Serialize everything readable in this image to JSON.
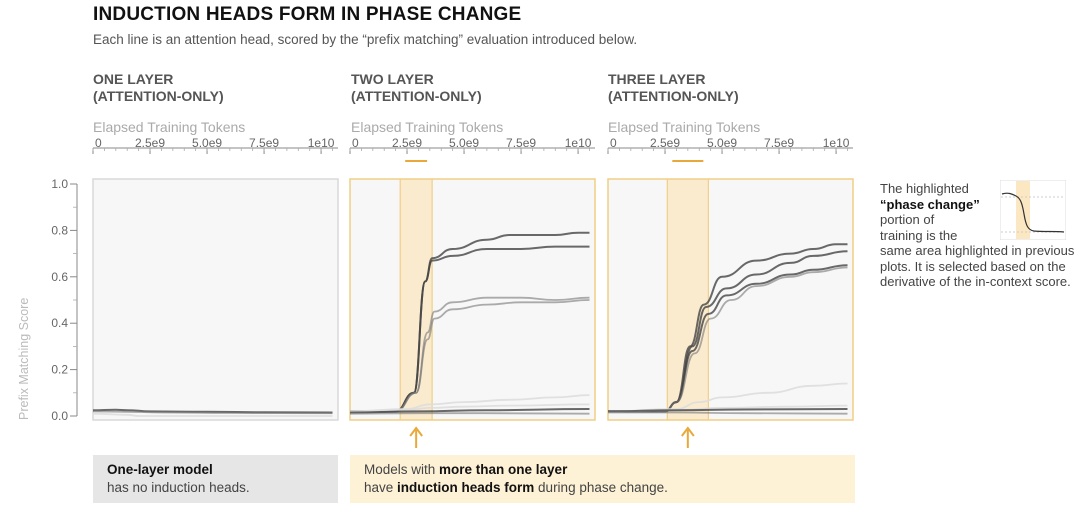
{
  "title": "INDUCTION HEADS FORM IN PHASE CHANGE",
  "subtitle": "Each line is an attention head, scored by the “prefix matching” evaluation introduced below.",
  "colors": {
    "highlight_fill": "#fbe7c1",
    "highlight_border": "#f0cf86",
    "arrow": "#e8a93a",
    "line_dark": "#444444",
    "line_faint": "#dddddd",
    "plot_bg": "#f7f7f7"
  },
  "chart_data": [
    {
      "type": "line",
      "panel_title": "ONE LAYER\n(ATTENTION-ONLY)",
      "xlabel": "Elapsed Training Tokens",
      "ylabel": "Prefix Matching Score",
      "xlim": [
        0,
        10000000000
      ],
      "ylim": [
        0,
        1.0
      ],
      "x_ticks": [
        "0",
        "2.5e9",
        "5.0e9",
        "7.5e9",
        "1e10"
      ],
      "y_ticks": [
        "0.0",
        "0.2",
        "0.4",
        "0.6",
        "0.8",
        "1.0"
      ],
      "phase_change": null,
      "series": [
        {
          "x": [
            0,
            1000000000.0,
            1500000000.0,
            2500000000.0,
            5000000000.0,
            7500000000.0,
            10500000000.0
          ],
          "values": [
            0.025,
            0.027,
            0.025,
            0.02,
            0.018,
            0.016,
            0.015
          ],
          "weight": "dark"
        },
        {
          "x": [
            0,
            1500000000.0,
            3000000000.0,
            6000000000.0,
            10500000000.0
          ],
          "values": [
            0.02,
            0.018,
            0.015,
            0.013,
            0.012
          ],
          "weight": "mid"
        },
        {
          "x": [
            0,
            1500000000.0,
            2000000000.0,
            5000000000.0,
            10500000000.0
          ],
          "values": [
            0.01,
            0.005,
            0.0,
            0.0,
            0.0
          ],
          "weight": "faint"
        }
      ]
    },
    {
      "type": "line",
      "panel_title": "TWO LAYER\n(ATTENTION-ONLY)",
      "xlabel": "Elapsed Training Tokens",
      "xlim": [
        0,
        10000000000
      ],
      "ylim": [
        0,
        1.0
      ],
      "x_ticks": [
        "0",
        "2.5e9",
        "5.0e9",
        "7.5e9",
        "1e10"
      ],
      "phase_change": [
        2200000000.0,
        3600000000.0
      ],
      "series": [
        {
          "x": [
            0,
            2000000000.0,
            2800000000.0,
            3300000000.0,
            3600000000.0,
            4500000000.0,
            6000000000.0,
            7000000000.0,
            9000000000.0,
            10000000000.0,
            10500000000.0
          ],
          "values": [
            0.02,
            0.02,
            0.1,
            0.58,
            0.68,
            0.72,
            0.76,
            0.78,
            0.78,
            0.79,
            0.79
          ],
          "weight": "dark"
        },
        {
          "x": [
            0,
            2000000000.0,
            2800000000.0,
            3300000000.0,
            3600000000.0,
            4500000000.0,
            6000000000.0,
            7500000000.0,
            9000000000.0,
            10500000000.0
          ],
          "values": [
            0.02,
            0.02,
            0.1,
            0.58,
            0.67,
            0.69,
            0.72,
            0.72,
            0.73,
            0.73
          ],
          "weight": "dark"
        },
        {
          "x": [
            0,
            2000000000.0,
            2900000000.0,
            3400000000.0,
            3700000000.0,
            4500000000.0,
            6000000000.0,
            7500000000.0,
            9000000000.0,
            10500000000.0
          ],
          "values": [
            0.02,
            0.02,
            0.1,
            0.36,
            0.45,
            0.49,
            0.51,
            0.51,
            0.5,
            0.51
          ],
          "weight": "mid"
        },
        {
          "x": [
            0,
            2000000000.0,
            2900000000.0,
            3400000000.0,
            3700000000.0,
            4500000000.0,
            6000000000.0,
            7500000000.0,
            9000000000.0,
            10500000000.0
          ],
          "values": [
            0.02,
            0.02,
            0.1,
            0.33,
            0.42,
            0.46,
            0.48,
            0.49,
            0.49,
            0.5
          ],
          "weight": "mid"
        },
        {
          "x": [
            0,
            2500000000.0,
            3500000000.0,
            5000000000.0,
            7000000000.0,
            9000000000.0,
            10500000000.0
          ],
          "values": [
            0.02,
            0.03,
            0.05,
            0.06,
            0.07,
            0.08,
            0.09
          ],
          "weight": "faint"
        },
        {
          "x": [
            0,
            2500000000.0,
            3500000000.0,
            5000000000.0,
            7000000000.0,
            10500000000.0
          ],
          "values": [
            0.02,
            0.025,
            0.035,
            0.04,
            0.045,
            0.05
          ],
          "weight": "faint"
        },
        {
          "x": [
            0,
            3000000000.0,
            6000000000.0,
            10500000000.0
          ],
          "values": [
            0.015,
            0.02,
            0.025,
            0.03
          ],
          "weight": "dark"
        },
        {
          "x": [
            0,
            3000000000.0,
            6000000000.0,
            10500000000.0
          ],
          "values": [
            0.01,
            0.012,
            0.012,
            0.01
          ],
          "weight": "mid"
        }
      ]
    },
    {
      "type": "line",
      "panel_title": "THREE LAYER\n(ATTENTION-ONLY)",
      "xlabel": "Elapsed Training Tokens",
      "xlim": [
        0,
        10000000000
      ],
      "ylim": [
        0,
        1.0
      ],
      "x_ticks": [
        "0",
        "2.5e9",
        "5.0e9",
        "7.5e9",
        "1e10"
      ],
      "phase_change": [
        2600000000.0,
        4400000000.0
      ],
      "series": [
        {
          "x": [
            0,
            2500000000.0,
            3000000000.0,
            3600000000.0,
            4200000000.0,
            5000000000.0,
            6500000000.0,
            8000000000.0,
            9000000000.0,
            10000000000.0,
            10500000000.0
          ],
          "values": [
            0.02,
            0.02,
            0.06,
            0.3,
            0.48,
            0.6,
            0.67,
            0.7,
            0.72,
            0.74,
            0.74
          ],
          "weight": "dark"
        },
        {
          "x": [
            0,
            2500000000.0,
            3000000000.0,
            3700000000.0,
            4300000000.0,
            5200000000.0,
            6500000000.0,
            8000000000.0,
            9000000000.0,
            10500000000.0
          ],
          "values": [
            0.02,
            0.02,
            0.06,
            0.3,
            0.47,
            0.55,
            0.61,
            0.66,
            0.69,
            0.71
          ],
          "weight": "dark"
        },
        {
          "x": [
            0,
            2500000000.0,
            3000000000.0,
            3700000000.0,
            4400000000.0,
            5200000000.0,
            6500000000.0,
            8000000000.0,
            9000000000.0,
            10500000000.0
          ],
          "values": [
            0.02,
            0.02,
            0.06,
            0.28,
            0.44,
            0.52,
            0.57,
            0.61,
            0.63,
            0.65
          ],
          "weight": "dark"
        },
        {
          "x": [
            0,
            2500000000.0,
            3000000000.0,
            3800000000.0,
            4500000000.0,
            5400000000.0,
            6500000000.0,
            8000000000.0,
            9000000000.0,
            10500000000.0
          ],
          "values": [
            0.02,
            0.02,
            0.06,
            0.27,
            0.42,
            0.5,
            0.56,
            0.6,
            0.62,
            0.64
          ],
          "weight": "mid"
        },
        {
          "x": [
            0,
            3000000000.0,
            4000000000.0,
            5000000000.0,
            7000000000.0,
            9000000000.0,
            10500000000.0
          ],
          "values": [
            0.02,
            0.03,
            0.06,
            0.08,
            0.1,
            0.13,
            0.14
          ],
          "weight": "faint"
        },
        {
          "x": [
            0,
            3000000000.0,
            5000000000.0,
            8000000000.0,
            10500000000.0
          ],
          "values": [
            0.02,
            0.025,
            0.035,
            0.04,
            0.045
          ],
          "weight": "faint"
        },
        {
          "x": [
            0,
            3000000000.0,
            6000000000.0,
            10500000000.0
          ],
          "values": [
            0.02,
            0.025,
            0.028,
            0.03
          ],
          "weight": "dark"
        },
        {
          "x": [
            0,
            3000000000.0,
            6000000000.0,
            10500000000.0
          ],
          "values": [
            0.015,
            0.015,
            0.012,
            0.01
          ],
          "weight": "mid"
        }
      ]
    }
  ],
  "side_note": {
    "l1": "The highlighted",
    "bold": "“phase change”",
    "l2": "portion of",
    "l3": "training is the",
    "rest": "same area highlighted in previous plots. It is selected based on the derivative of the in-context score."
  },
  "box_one": {
    "bold": "One-layer model",
    "rest": "has no induction heads."
  },
  "box_multi": {
    "pre": "Models with ",
    "bold1": "more than one layer",
    "pre2": "have ",
    "bold2": "induction heads form",
    "post": " during phase change."
  }
}
